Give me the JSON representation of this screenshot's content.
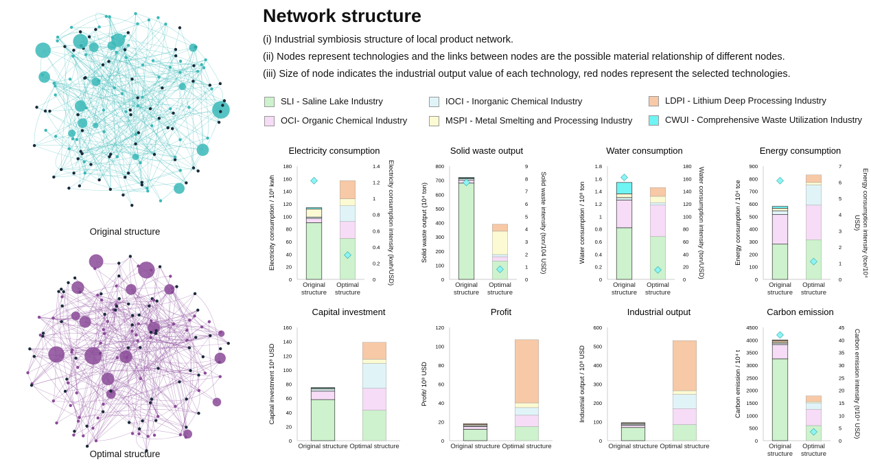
{
  "title": "Network structure",
  "notes": [
    "(i) Industrial symbiosis structure of local product network.",
    "(ii) Nodes represent technologies and the links between nodes are the possible material relationship of different nodes.",
    "(iii) Size of node indicates the industrial output value of each technology, red nodes represent the selected technologies."
  ],
  "networks": [
    {
      "caption": "Original structure",
      "color": "#3bb8b8"
    },
    {
      "caption": "Optimal structure",
      "color": "#8a4a98"
    }
  ],
  "series": [
    {
      "name": "SLI - Saline Lake Industry",
      "color": "#cdf2cd"
    },
    {
      "name": "OCI- Organic Chemical Industry",
      "color": "#f6dcf6"
    },
    {
      "name": "IOCI - Inorganic Chemical Industry",
      "color": "#e0f4f8"
    },
    {
      "name": "MSPI - Metal Smelting and Processing Industry",
      "color": "#fbfad2"
    },
    {
      "name": "LDPI - Lithium Deep Processing Industry",
      "color": "#f7c9a6"
    },
    {
      "name": "CWUI - Comprehensive Waste Utilization Industry",
      "color": "#6ff3f3"
    }
  ],
  "chart_data": [
    {
      "type": "bar",
      "title": "Electricity consumption",
      "categories": [
        "Original structure",
        "Optimal structure"
      ],
      "ylabel": "Electricity consumption / 10⁸ kwh",
      "y2label": "Electricity consumption intensity (kwh/USD)",
      "ylim": [
        0,
        180
      ],
      "yticks": [
        0,
        20,
        40,
        60,
        80,
        100,
        120,
        140,
        160,
        180
      ],
      "y2lim": [
        0,
        1.4
      ],
      "y2ticks": [
        0,
        0.2,
        0.4,
        0.6,
        0.8,
        1,
        1.2,
        1.4
      ],
      "series": [
        {
          "values": [
            90,
            65
          ]
        },
        {
          "values": [
            7,
            27
          ]
        },
        {
          "values": [
            2,
            25
          ]
        },
        {
          "values": [
            13,
            11
          ]
        },
        {
          "values": [
            0,
            29
          ]
        },
        {
          "values": [
            2,
            0
          ]
        }
      ],
      "markers": {
        "axis": "y2",
        "color": "#8ef3f3",
        "values": [
          1.22,
          0.3
        ]
      }
    },
    {
      "type": "bar",
      "title": "Solid waste output",
      "categories": [
        "Original structure",
        "Optimal structure"
      ],
      "ylabel": "Solid waste output (10⁴ ton)",
      "y2label": "Solid waste intensity (ton/104 USD)",
      "ylim": [
        0,
        800
      ],
      "yticks": [
        0,
        100,
        200,
        300,
        400,
        500,
        600,
        700,
        800
      ],
      "y2lim": [
        0,
        9
      ],
      "y2ticks": [
        0,
        1,
        2,
        3,
        4,
        5,
        6,
        7,
        8,
        9
      ],
      "series": [
        {
          "values": [
            680,
            130
          ]
        },
        {
          "values": [
            20,
            30
          ]
        },
        {
          "values": [
            10,
            15
          ]
        },
        {
          "values": [
            5,
            165
          ]
        },
        {
          "values": [
            0,
            50
          ]
        },
        {
          "values": [
            5,
            0
          ]
        }
      ],
      "markers": {
        "axis": "y2",
        "color": "#8ef3f3",
        "values": [
          7.7,
          0.8
        ]
      }
    },
    {
      "type": "bar",
      "title": "Water consumption",
      "categories": [
        "Original structure",
        "Optimal structure"
      ],
      "ylabel": "Water consumption / 10⁸ ton",
      "y2label": "Water consumption intensity (ton/USD)",
      "ylim": [
        0,
        1.8
      ],
      "yticks": [
        0,
        0.2,
        0.4,
        0.6,
        0.8,
        1,
        1.2,
        1.4,
        1.6,
        1.8
      ],
      "y2lim": [
        0,
        180
      ],
      "y2ticks": [
        0,
        20,
        40,
        60,
        80,
        100,
        120,
        140,
        160,
        180
      ],
      "series": [
        {
          "values": [
            0.82,
            0.68
          ]
        },
        {
          "values": [
            0.44,
            0.5
          ]
        },
        {
          "values": [
            0.04,
            0.04
          ]
        },
        {
          "values": [
            0.06,
            0.1
          ]
        },
        {
          "values": [
            0,
            0.14
          ]
        },
        {
          "values": [
            0.18,
            0
          ]
        }
      ],
      "markers": {
        "axis": "y2",
        "color": "#8ef3f3",
        "values": [
          162,
          15
        ]
      }
    },
    {
      "type": "bar",
      "title": "Energy consumption",
      "categories": [
        "Original structure",
        "Optimal structure"
      ],
      "ylabel": "Energy consumption / 10⁴ tce",
      "y2label": "Energy consumption intensity (tce/10⁴ USD)",
      "ylim": [
        0,
        900
      ],
      "yticks": [
        0,
        100,
        200,
        300,
        400,
        500,
        600,
        700,
        800,
        900
      ],
      "y2lim": [
        0,
        7
      ],
      "y2ticks": [
        0,
        1,
        2,
        3,
        4,
        5,
        6,
        7
      ],
      "series": [
        {
          "values": [
            280,
            315
          ]
        },
        {
          "values": [
            235,
            275
          ]
        },
        {
          "values": [
            30,
            160
          ]
        },
        {
          "values": [
            20,
            20
          ]
        },
        {
          "values": [
            0,
            60
          ]
        },
        {
          "values": [
            15,
            0
          ]
        }
      ],
      "markers": {
        "axis": "y2",
        "color": "#8ef3f3",
        "values": [
          6.1,
          1.1
        ]
      }
    },
    {
      "type": "bar",
      "title": "Capital investment",
      "categories": [
        "Original structure",
        "Optimal structure"
      ],
      "ylabel": "Capital investment 10⁸ USD",
      "ylim": [
        0,
        160
      ],
      "yticks": [
        0,
        20,
        40,
        60,
        80,
        100,
        120,
        140,
        160
      ],
      "series": [
        {
          "values": [
            58,
            43
          ]
        },
        {
          "values": [
            12,
            31
          ]
        },
        {
          "values": [
            3,
            35
          ]
        },
        {
          "values": [
            1,
            6
          ]
        },
        {
          "values": [
            0,
            24
          ]
        },
        {
          "values": [
            1,
            0
          ]
        }
      ]
    },
    {
      "type": "bar",
      "title": "Profit",
      "categories": [
        "Original structure",
        "Optimal structure"
      ],
      "ylabel": "Profit/ 10⁸ USD",
      "ylim": [
        0,
        120
      ],
      "yticks": [
        0,
        20,
        40,
        60,
        80,
        100,
        120
      ],
      "series": [
        {
          "values": [
            12,
            15
          ]
        },
        {
          "values": [
            3,
            12
          ]
        },
        {
          "values": [
            1,
            8
          ]
        },
        {
          "values": [
            1,
            5
          ]
        },
        {
          "values": [
            1,
            67
          ]
        },
        {
          "values": [
            0,
            0
          ]
        }
      ]
    },
    {
      "type": "bar",
      "title": "Industrial output",
      "categories": [
        "Original structure",
        "Optimal structure"
      ],
      "ylabel": "Industrial output / 10⁸ USD",
      "ylim": [
        0,
        600
      ],
      "yticks": [
        0,
        100,
        200,
        300,
        400,
        500,
        600
      ],
      "series": [
        {
          "values": [
            70,
            85
          ]
        },
        {
          "values": [
            12,
            85
          ]
        },
        {
          "values": [
            5,
            75
          ]
        },
        {
          "values": [
            5,
            20
          ]
        },
        {
          "values": [
            3,
            265
          ]
        },
        {
          "values": [
            0,
            0
          ]
        }
      ]
    },
    {
      "type": "bar",
      "title": "Carbon emission",
      "categories": [
        "Original structure",
        "Optimal structure"
      ],
      "ylabel": "Carbon emission / 10⁴ t",
      "y2label": "Carbon emission intensity (t/10⁴ USD)",
      "ylim": [
        0,
        4500
      ],
      "yticks": [
        0,
        500,
        1000,
        1500,
        2000,
        2500,
        3000,
        3500,
        4000,
        4500
      ],
      "y2lim": [
        0,
        45
      ],
      "y2ticks": [
        0,
        5,
        10,
        15,
        20,
        25,
        30,
        35,
        40,
        45
      ],
      "series": [
        {
          "values": [
            3250,
            600
          ]
        },
        {
          "values": [
            570,
            650
          ]
        },
        {
          "values": [
            50,
            250
          ]
        },
        {
          "values": [
            50,
            50
          ]
        },
        {
          "values": [
            60,
            230
          ]
        },
        {
          "values": [
            20,
            0
          ]
        }
      ],
      "markers": {
        "axis": "y2",
        "color": "#8ef3f3",
        "values": [
          42,
          3.5
        ]
      }
    }
  ]
}
